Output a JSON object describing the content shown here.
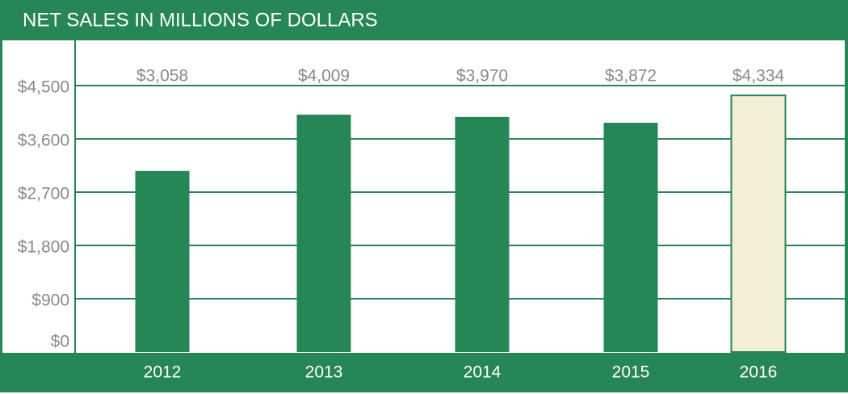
{
  "chart_data": {
    "type": "bar",
    "title": "NET SALES IN MILLIONS OF DOLLARS",
    "categories": [
      "2012",
      "2013",
      "2014",
      "2015",
      "2016"
    ],
    "values": [
      3058,
      4009,
      3970,
      3872,
      4334
    ],
    "value_labels": [
      "$3,058",
      "$4,009",
      "$3,970",
      "$3,872",
      "$4,334"
    ],
    "colors": [
      "#268655",
      "#268655",
      "#268655",
      "#268655",
      "#f3eed6"
    ],
    "ylim": [
      0,
      4500
    ],
    "yticks": [
      {
        "value": 0,
        "label": "$0"
      },
      {
        "value": 900,
        "label": "$900"
      },
      {
        "value": 1800,
        "label": "$1,800"
      },
      {
        "value": 2700,
        "label": "$2,700"
      },
      {
        "value": 3600,
        "label": "$3,600"
      },
      {
        "value": 4500,
        "label": "$4,500"
      }
    ],
    "grid": true
  }
}
